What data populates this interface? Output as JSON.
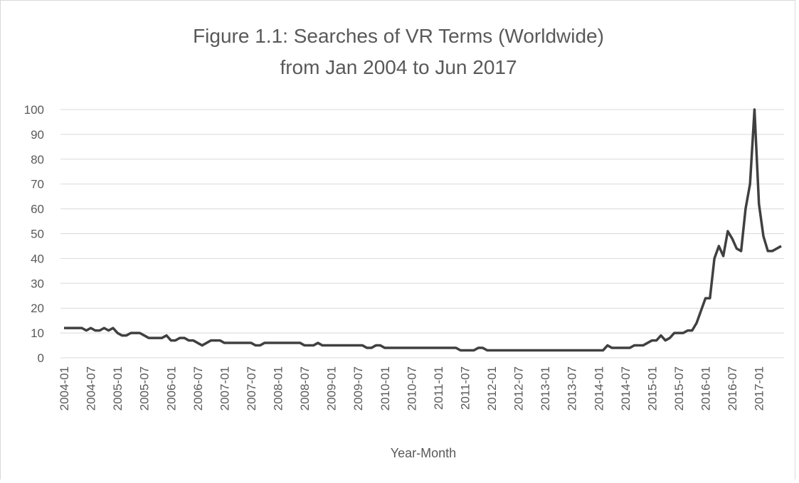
{
  "chart_data": {
    "type": "line",
    "title": [
      "Figure 1.1: Searches of VR Terms (Worldwide)",
      "from Jan 2004 to Jun 2017"
    ],
    "xlabel": "Year-Month",
    "categories": [
      "2004-01",
      null,
      null,
      null,
      null,
      null,
      "2004-07",
      null,
      null,
      null,
      null,
      null,
      "2005-01",
      null,
      null,
      null,
      null,
      null,
      "2005-07",
      null,
      null,
      null,
      null,
      null,
      "2006-01",
      null,
      null,
      null,
      null,
      null,
      "2006-07",
      null,
      null,
      null,
      null,
      null,
      "2007-01",
      null,
      null,
      null,
      null,
      null,
      "2007-07",
      null,
      null,
      null,
      null,
      null,
      "2008-01",
      null,
      null,
      null,
      null,
      null,
      "2008-07",
      null,
      null,
      null,
      null,
      null,
      "2009-01",
      null,
      null,
      null,
      null,
      null,
      "2009-07",
      null,
      null,
      null,
      null,
      null,
      "2010-01",
      null,
      null,
      null,
      null,
      null,
      "2010-07",
      null,
      null,
      null,
      null,
      null,
      "2011-01",
      null,
      null,
      null,
      null,
      null,
      "2011-07",
      null,
      null,
      null,
      null,
      null,
      "2012-01",
      null,
      null,
      null,
      null,
      null,
      "2012-07",
      null,
      null,
      null,
      null,
      null,
      "2013-01",
      null,
      null,
      null,
      null,
      null,
      "2013-07",
      null,
      null,
      null,
      null,
      null,
      "2014-01",
      null,
      null,
      null,
      null,
      null,
      "2014-07",
      null,
      null,
      null,
      null,
      null,
      "2015-01",
      null,
      null,
      null,
      null,
      null,
      "2015-07",
      null,
      null,
      null,
      null,
      null,
      "2016-01",
      null,
      null,
      null,
      null,
      null,
      "2016-07",
      null,
      null,
      null,
      null,
      null,
      "2017-01",
      null,
      null,
      null,
      null,
      null
    ],
    "values": [
      12,
      12,
      12,
      12,
      12,
      11,
      12,
      11,
      11,
      12,
      11,
      12,
      10,
      9,
      9,
      10,
      10,
      10,
      9,
      8,
      8,
      8,
      8,
      9,
      7,
      7,
      8,
      8,
      7,
      7,
      6,
      5,
      6,
      7,
      7,
      7,
      6,
      6,
      6,
      6,
      6,
      6,
      6,
      5,
      5,
      6,
      6,
      6,
      6,
      6,
      6,
      6,
      6,
      6,
      5,
      5,
      5,
      6,
      5,
      5,
      5,
      5,
      5,
      5,
      5,
      5,
      5,
      5,
      4,
      4,
      5,
      5,
      4,
      4,
      4,
      4,
      4,
      4,
      4,
      4,
      4,
      4,
      4,
      4,
      4,
      4,
      4,
      4,
      4,
      3,
      3,
      3,
      3,
      4,
      4,
      3,
      3,
      3,
      3,
      3,
      3,
      3,
      3,
      3,
      3,
      3,
      3,
      3,
      3,
      3,
      3,
      3,
      3,
      3,
      3,
      3,
      3,
      3,
      3,
      3,
      3,
      3,
      5,
      4,
      4,
      4,
      4,
      4,
      5,
      5,
      5,
      6,
      7,
      7,
      9,
      7,
      8,
      10,
      10,
      10,
      11,
      11,
      14,
      19,
      24,
      24,
      40,
      45,
      41,
      51,
      48,
      44,
      43,
      60,
      70,
      100,
      62,
      49,
      43,
      43,
      44,
      45
    ],
    "color": "#404040",
    "ylim": [
      0,
      100
    ],
    "yticks": [
      0,
      10,
      20,
      30,
      40,
      50,
      60,
      70,
      80,
      90,
      100
    ],
    "grid": true
  }
}
